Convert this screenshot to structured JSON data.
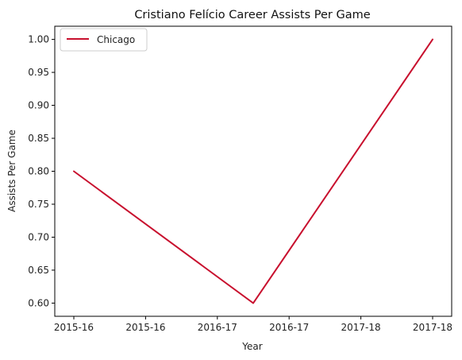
{
  "chart_data": {
    "type": "line",
    "title": "Cristiano Felício Career Assists Per Game",
    "xlabel": "Year",
    "ylabel": "Assists Per Game",
    "x": [
      0,
      1,
      2
    ],
    "x_tick_labels": [
      "2015-16",
      "2015-16",
      "2016-17",
      "2016-17",
      "2017-18",
      "2017-18"
    ],
    "ylim": [
      0.58,
      1.02
    ],
    "y_ticks": [
      "0.60",
      "0.65",
      "0.70",
      "0.75",
      "0.80",
      "0.85",
      "0.90",
      "0.95",
      "1.00"
    ],
    "series": [
      {
        "name": "Chicago",
        "values": [
          0.8,
          0.6,
          1.0
        ],
        "color": "#c8102e"
      }
    ],
    "legend_position": "upper-left",
    "grid": false
  }
}
